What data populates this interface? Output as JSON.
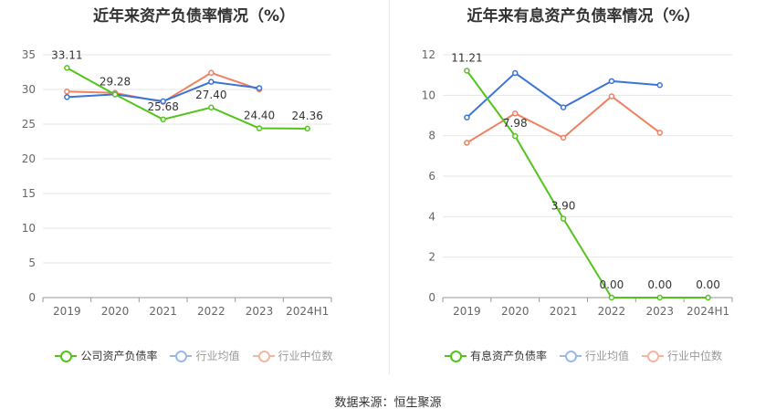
{
  "charts": [
    {
      "title": "近年来资产负债率情况（%）",
      "legend": [
        "公司资产负债率",
        "行业均值",
        "行业中位数"
      ]
    },
    {
      "title": "近年来有息资产负债率情况（%）",
      "legend": [
        "有息资产负债率",
        "行业均值",
        "行业中位数"
      ]
    }
  ],
  "footer": "数据来源：恒生聚源",
  "colors": {
    "company": "#52c41a",
    "mean": "#3a74d9",
    "median": "#f08160",
    "grid": "#e6e6e6",
    "axis": "#999999"
  },
  "chart_data": [
    {
      "type": "line",
      "title": "近年来资产负债率情况（%）",
      "categories": [
        "2019",
        "2020",
        "2021",
        "2022",
        "2023",
        "2024H1"
      ],
      "ylim": [
        0,
        35
      ],
      "yticks": [
        0,
        5,
        10,
        15,
        20,
        25,
        30,
        35
      ],
      "series": [
        {
          "name": "公司资产负债率",
          "values": [
            33.11,
            29.28,
            25.68,
            27.4,
            24.4,
            24.36
          ],
          "labels": [
            "33.11",
            "29.28",
            "25.68",
            "27.40",
            "24.40",
            "24.36"
          ]
        },
        {
          "name": "行业均值",
          "values": [
            28.9,
            29.3,
            28.3,
            31.1,
            30.2,
            null
          ]
        },
        {
          "name": "行业中位数",
          "values": [
            29.7,
            29.5,
            28.2,
            32.4,
            30.0,
            null
          ]
        }
      ]
    },
    {
      "type": "line",
      "title": "近年来有息资产负债率情况（%）",
      "categories": [
        "2019",
        "2020",
        "2021",
        "2022",
        "2023",
        "2024H1"
      ],
      "ylim": [
        0,
        12
      ],
      "yticks": [
        0,
        2,
        4,
        6,
        8,
        10,
        12
      ],
      "series": [
        {
          "name": "有息资产负债率",
          "values": [
            11.21,
            7.98,
            3.9,
            0.0,
            0.0,
            0.0
          ],
          "labels": [
            "11.21",
            "7.98",
            "3.90",
            "0.00",
            "0.00",
            "0.00"
          ]
        },
        {
          "name": "行业均值",
          "values": [
            8.9,
            11.1,
            9.4,
            10.7,
            10.5,
            null
          ]
        },
        {
          "name": "行业中位数",
          "values": [
            7.65,
            9.1,
            7.9,
            9.95,
            8.15,
            null
          ]
        }
      ]
    }
  ]
}
